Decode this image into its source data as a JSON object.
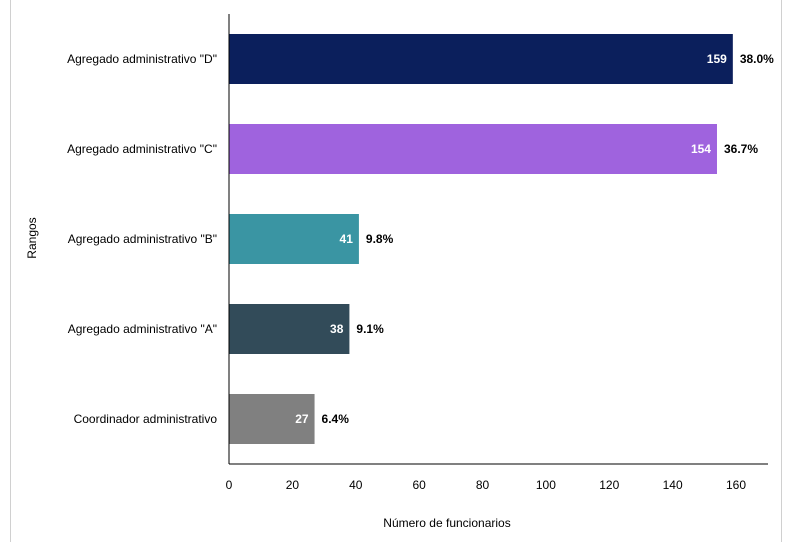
{
  "chart_data": {
    "type": "bar",
    "orientation": "horizontal",
    "title": "",
    "xlabel": "Número de funcionarios",
    "ylabel": "Rangos",
    "xlim": [
      0,
      170
    ],
    "xticks": [
      "0",
      "20",
      "40",
      "60",
      "80",
      "100",
      "120",
      "140",
      "160"
    ],
    "grid": false,
    "legend": "none",
    "categories": [
      "Agregado administrativo \"D\"",
      "Agregado administrativo \"C\"",
      "Agregado administrativo \"B\"",
      "Agregado administrativo \"A\"",
      "Coordinador administrativo"
    ],
    "values": [
      159,
      154,
      41,
      38,
      27
    ],
    "value_labels": [
      "159",
      "154",
      "41",
      "38",
      "27"
    ],
    "percent_labels": [
      "38.0%",
      "36.7%",
      "9.8%",
      "9.1%",
      "6.4%"
    ],
    "colors": [
      "#0b1f5c",
      "#9f63de",
      "#3a95a3",
      "#324b59",
      "#808080"
    ]
  }
}
